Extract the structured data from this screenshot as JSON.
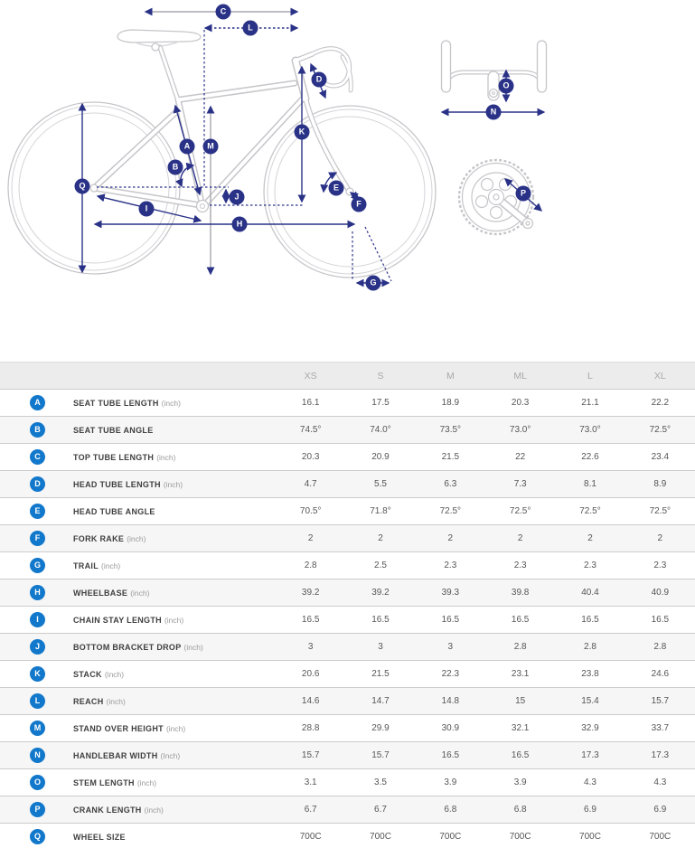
{
  "colors": {
    "diagram_badge_navy": "#2a3287",
    "table_badge_blue": "#1278cb",
    "bike_line_gray": "#c6c6ca",
    "measure_gray": "#a7a7af",
    "header_bg": "#ececec",
    "row_alt_bg": "#f6f6f6",
    "row_border": "#cccccc"
  },
  "diagram": {
    "labels": [
      "A",
      "B",
      "C",
      "D",
      "E",
      "F",
      "G",
      "H",
      "I",
      "J",
      "K",
      "L",
      "M",
      "N",
      "O",
      "P",
      "Q"
    ]
  },
  "table": {
    "columns": [
      "XS",
      "S",
      "M",
      "ML",
      "L",
      "XL"
    ],
    "rows": [
      {
        "letter": "A",
        "label": "SEAT TUBE LENGTH",
        "unit": "(inch)",
        "values": [
          "16.1",
          "17.5",
          "18.9",
          "20.3",
          "21.1",
          "22.2"
        ]
      },
      {
        "letter": "B",
        "label": "SEAT TUBE ANGLE",
        "unit": "",
        "values": [
          "74.5°",
          "74.0°",
          "73.5°",
          "73.0°",
          "73.0°",
          "72.5°"
        ]
      },
      {
        "letter": "C",
        "label": "TOP TUBE LENGTH",
        "unit": "(inch)",
        "values": [
          "20.3",
          "20.9",
          "21.5",
          "22",
          "22.6",
          "23.4"
        ]
      },
      {
        "letter": "D",
        "label": "HEAD TUBE LENGTH",
        "unit": "(inch)",
        "values": [
          "4.7",
          "5.5",
          "6.3",
          "7.3",
          "8.1",
          "8.9"
        ]
      },
      {
        "letter": "E",
        "label": "HEAD TUBE ANGLE",
        "unit": "",
        "values": [
          "70.5°",
          "71.8°",
          "72.5°",
          "72.5°",
          "72.5°",
          "72.5°"
        ]
      },
      {
        "letter": "F",
        "label": "FORK RAKE",
        "unit": "(inch)",
        "values": [
          "2",
          "2",
          "2",
          "2",
          "2",
          "2"
        ]
      },
      {
        "letter": "G",
        "label": "TRAIL",
        "unit": "(inch)",
        "values": [
          "2.8",
          "2.5",
          "2.3",
          "2.3",
          "2.3",
          "2.3"
        ]
      },
      {
        "letter": "H",
        "label": "WHEELBASE",
        "unit": "(inch)",
        "values": [
          "39.2",
          "39.2",
          "39.3",
          "39.8",
          "40.4",
          "40.9"
        ]
      },
      {
        "letter": "I",
        "label": "CHAIN STAY LENGTH",
        "unit": "(inch)",
        "values": [
          "16.5",
          "16.5",
          "16.5",
          "16.5",
          "16.5",
          "16.5"
        ]
      },
      {
        "letter": "J",
        "label": "BOTTOM BRACKET DROP",
        "unit": "(inch)",
        "values": [
          "3",
          "3",
          "3",
          "2.8",
          "2.8",
          "2.8"
        ]
      },
      {
        "letter": "K",
        "label": "STACK",
        "unit": "(inch)",
        "values": [
          "20.6",
          "21.5",
          "22.3",
          "23.1",
          "23.8",
          "24.6"
        ]
      },
      {
        "letter": "L",
        "label": "REACH",
        "unit": "(inch)",
        "values": [
          "14.6",
          "14.7",
          "14.8",
          "15",
          "15.4",
          "15.7"
        ]
      },
      {
        "letter": "M",
        "label": "STAND OVER HEIGHT",
        "unit": "(inch)",
        "values": [
          "28.8",
          "29.9",
          "30.9",
          "32.1",
          "32.9",
          "33.7"
        ]
      },
      {
        "letter": "N",
        "label": "HANDLEBAR WIDTH",
        "unit": "(Inch)",
        "values": [
          "15.7",
          "15.7",
          "16.5",
          "16.5",
          "17.3",
          "17.3"
        ]
      },
      {
        "letter": "O",
        "label": "STEM LENGTH",
        "unit": "(inch)",
        "values": [
          "3.1",
          "3.5",
          "3.9",
          "3.9",
          "4.3",
          "4.3"
        ]
      },
      {
        "letter": "P",
        "label": "CRANK LENGTH",
        "unit": "(inch)",
        "values": [
          "6.7",
          "6.7",
          "6.8",
          "6.8",
          "6.9",
          "6.9"
        ]
      },
      {
        "letter": "Q",
        "label": "WHEEL SIZE",
        "unit": "",
        "values": [
          "700C",
          "700C",
          "700C",
          "700C",
          "700C",
          "700C"
        ]
      }
    ]
  }
}
